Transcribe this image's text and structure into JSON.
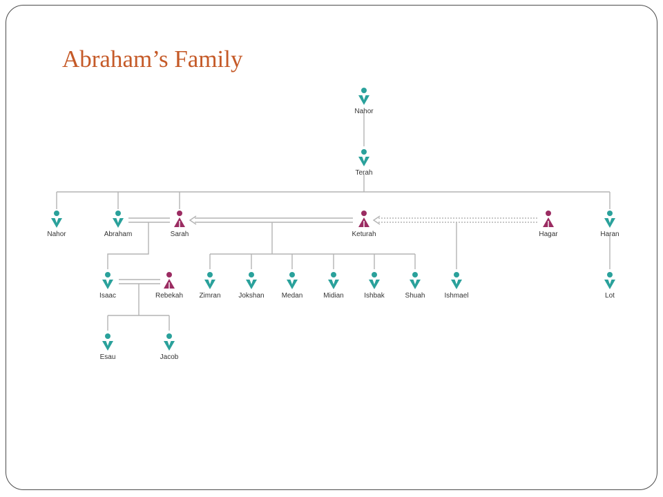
{
  "title": "Abraham’s Family",
  "colors": {
    "title": "#c55a28",
    "male": "#2aa19b",
    "female": "#9b2c62",
    "line": "#b3b3b3",
    "label": "#333333"
  },
  "legend_icons": {
    "male": "male-person-icon",
    "female": "female-person-icon"
  },
  "people": [
    {
      "id": "nahor_sr",
      "name": "Nahor",
      "gender": "male"
    },
    {
      "id": "terah",
      "name": "Terah",
      "gender": "male"
    },
    {
      "id": "nahor",
      "name": "Nahor",
      "gender": "male"
    },
    {
      "id": "abraham",
      "name": "Abraham",
      "gender": "male"
    },
    {
      "id": "sarah",
      "name": "Sarah",
      "gender": "female"
    },
    {
      "id": "keturah",
      "name": "Keturah",
      "gender": "female"
    },
    {
      "id": "hagar",
      "name": "Hagar",
      "gender": "female"
    },
    {
      "id": "haran",
      "name": "Haran",
      "gender": "male"
    },
    {
      "id": "isaac",
      "name": "Isaac",
      "gender": "male"
    },
    {
      "id": "rebekah",
      "name": "Rebekah",
      "gender": "female"
    },
    {
      "id": "zimran",
      "name": "Zimran",
      "gender": "male"
    },
    {
      "id": "jokshan",
      "name": "Jokshan",
      "gender": "male"
    },
    {
      "id": "medan",
      "name": "Medan",
      "gender": "male"
    },
    {
      "id": "midian",
      "name": "Midian",
      "gender": "male"
    },
    {
      "id": "ishbak",
      "name": "Ishbak",
      "gender": "male"
    },
    {
      "id": "shuah",
      "name": "Shuah",
      "gender": "male"
    },
    {
      "id": "ishmael",
      "name": "Ishmael",
      "gender": "male"
    },
    {
      "id": "lot",
      "name": "Lot",
      "gender": "male"
    },
    {
      "id": "esau",
      "name": "Esau",
      "gender": "male"
    },
    {
      "id": "jacob",
      "name": "Jacob",
      "gender": "male"
    }
  ],
  "unions": [
    {
      "from": "abraham",
      "to": "sarah",
      "style": "double"
    },
    {
      "from": "abraham",
      "to": "keturah",
      "style": "double-arrow"
    },
    {
      "from": "abraham",
      "to": "hagar",
      "style": "dashed-arrow"
    },
    {
      "from": "isaac",
      "to": "rebekah",
      "style": "double"
    }
  ],
  "descent": [
    {
      "parents": [
        "nahor_sr"
      ],
      "children": [
        "terah"
      ]
    },
    {
      "parents": [
        "terah"
      ],
      "children": [
        "nahor",
        "abraham",
        "sarah",
        "haran"
      ]
    },
    {
      "parents": [
        "abraham",
        "sarah"
      ],
      "children": [
        "isaac"
      ]
    },
    {
      "parents": [
        "abraham",
        "keturah"
      ],
      "children": [
        "zimran",
        "jokshan",
        "medan",
        "midian",
        "ishbak",
        "shuah"
      ]
    },
    {
      "parents": [
        "abraham",
        "hagar"
      ],
      "children": [
        "ishmael"
      ]
    },
    {
      "parents": [
        "haran"
      ],
      "children": [
        "lot"
      ]
    },
    {
      "parents": [
        "isaac",
        "rebekah"
      ],
      "children": [
        "esau",
        "jacob"
      ]
    }
  ]
}
